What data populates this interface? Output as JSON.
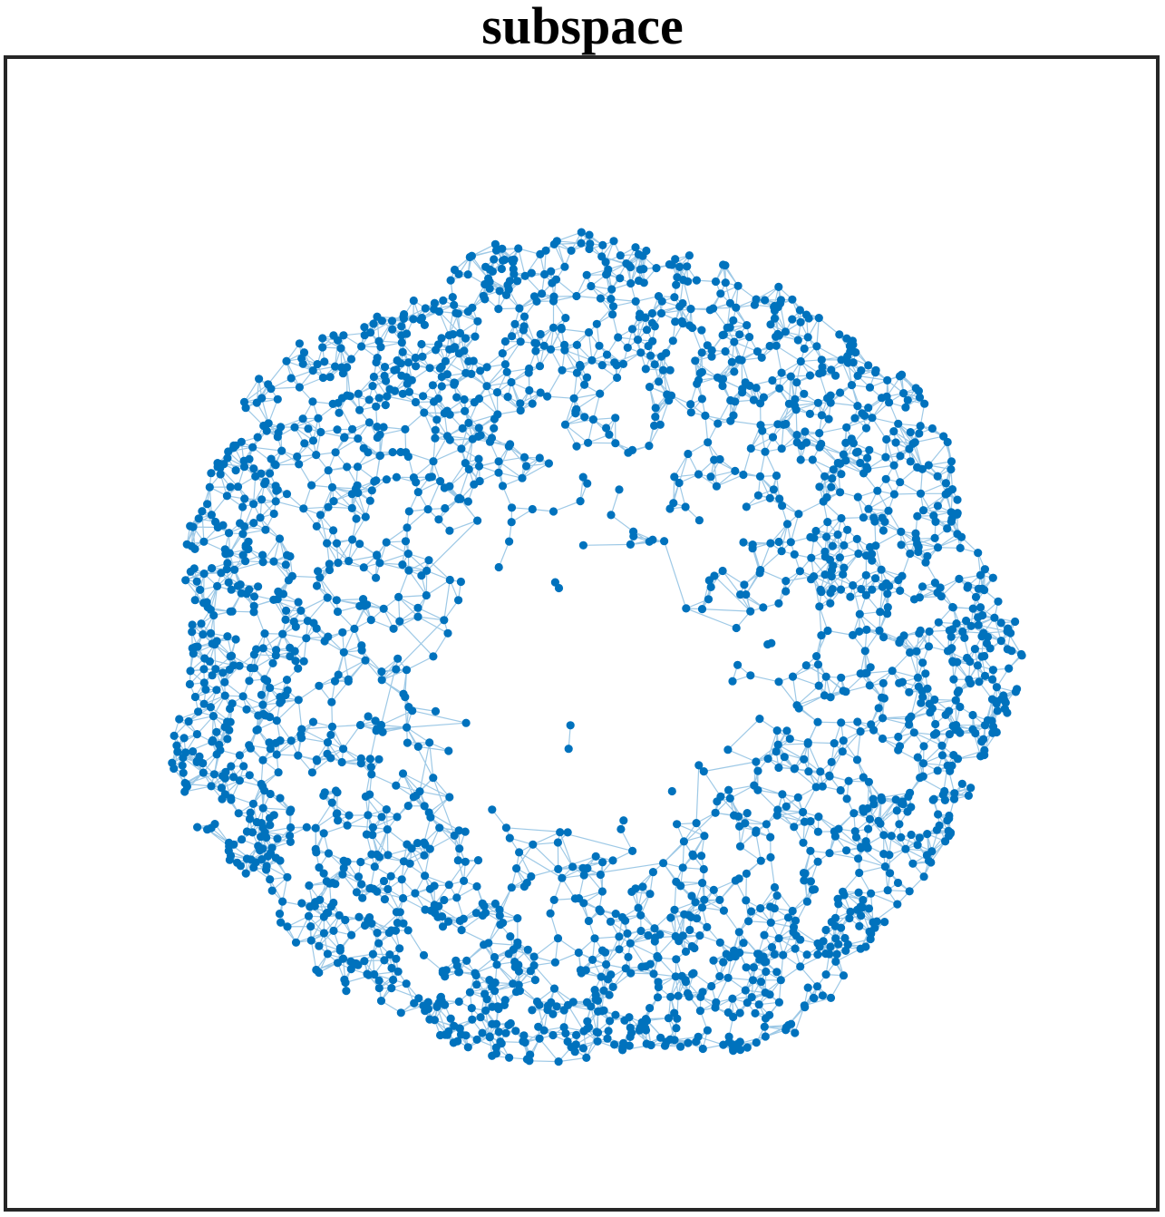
{
  "title": "subspace",
  "graph": {
    "layout": "subspace",
    "node_color": "#0072BD",
    "edge_color": "#4F9CD1",
    "axes_color": "#262626",
    "background": "#ffffff",
    "axis_ticks_visible": false
  }
}
